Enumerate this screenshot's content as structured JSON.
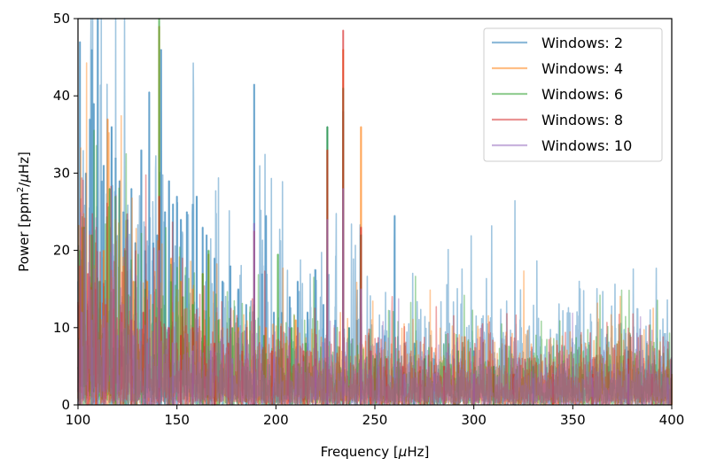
{
  "chart_data": {
    "type": "line",
    "xlabel_prefix": "Frequency [",
    "xlabel_mu": "μ",
    "xlabel_suffix": "Hz]",
    "ylabel_prefix": "Power [ppm",
    "ylabel_sup": "2",
    "ylabel_mid": "/",
    "ylabel_mu": "μ",
    "ylabel_suffix": "Hz]",
    "xlim": [
      100,
      400
    ],
    "ylim": [
      0,
      50
    ],
    "xticks": [
      100,
      150,
      200,
      250,
      300,
      350,
      400
    ],
    "yticks": [
      0,
      10,
      20,
      30,
      40,
      50
    ],
    "grid": false,
    "legend_position": "top-right",
    "series": [
      {
        "name": "Windows: 2",
        "color": "#1f77b4",
        "noise_level": 3.2,
        "scale": 1.25,
        "peaks": [
          [
            101,
            47
          ],
          [
            104,
            30
          ],
          [
            106,
            37
          ],
          [
            107,
            46
          ],
          [
            108,
            39
          ],
          [
            110,
            50
          ],
          [
            112,
            29
          ],
          [
            113,
            31
          ],
          [
            117,
            36
          ],
          [
            119,
            32
          ],
          [
            121,
            29
          ],
          [
            123,
            25
          ],
          [
            125,
            24
          ],
          [
            127,
            28
          ],
          [
            129,
            21
          ],
          [
            132,
            33
          ],
          [
            134,
            20
          ],
          [
            136,
            40.5
          ],
          [
            138,
            21
          ],
          [
            140,
            22
          ],
          [
            142,
            46
          ],
          [
            144,
            25
          ],
          [
            146,
            29
          ],
          [
            148,
            26
          ],
          [
            150,
            27
          ],
          [
            152,
            24
          ],
          [
            155,
            25
          ],
          [
            158,
            26
          ],
          [
            160,
            27
          ],
          [
            163,
            23
          ],
          [
            165,
            22
          ],
          [
            169,
            19
          ],
          [
            173,
            16
          ],
          [
            177,
            18
          ],
          [
            181,
            15
          ],
          [
            185,
            13
          ],
          [
            189,
            41.5
          ],
          [
            193,
            17
          ],
          [
            195,
            24.5
          ],
          [
            199,
            12
          ],
          [
            203,
            12
          ],
          [
            207,
            14
          ],
          [
            211,
            16
          ],
          [
            216,
            12
          ],
          [
            220,
            17.5
          ],
          [
            224,
            13
          ],
          [
            226,
            36
          ],
          [
            230,
            11
          ],
          [
            234,
            38
          ],
          [
            237,
            10
          ],
          [
            241,
            11
          ],
          [
            243,
            22
          ],
          [
            247,
            9
          ],
          [
            251,
            8
          ],
          [
            255,
            9
          ],
          [
            260,
            24.5
          ],
          [
            265,
            8
          ],
          [
            270,
            8
          ],
          [
            275,
            6
          ],
          [
            280,
            6
          ],
          [
            290,
            6
          ],
          [
            300,
            7
          ],
          [
            310,
            5
          ],
          [
            320,
            6
          ],
          [
            330,
            5
          ],
          [
            340,
            5
          ],
          [
            350,
            5
          ],
          [
            360,
            5
          ],
          [
            368,
            5
          ],
          [
            378,
            7
          ],
          [
            385,
            5
          ],
          [
            392,
            4
          ],
          [
            398,
            4
          ]
        ]
      },
      {
        "name": "Windows: 4",
        "color": "#ff7f0e",
        "noise_level": 2.6,
        "scale": 1.0,
        "peaks": [
          [
            102,
            23
          ],
          [
            106,
            22
          ],
          [
            109,
            21
          ],
          [
            113,
            20
          ],
          [
            115,
            37
          ],
          [
            119,
            24
          ],
          [
            123,
            18
          ],
          [
            128,
            16
          ],
          [
            135,
            16
          ],
          [
            141,
            49
          ],
          [
            147,
            19
          ],
          [
            152,
            16
          ],
          [
            158,
            15
          ],
          [
            163,
            17
          ],
          [
            166,
            19.5
          ],
          [
            170,
            12
          ],
          [
            181,
            10
          ],
          [
            189,
            12
          ],
          [
            195,
            10
          ],
          [
            205,
            8
          ],
          [
            210,
            11
          ],
          [
            216,
            7
          ],
          [
            226,
            33
          ],
          [
            234,
            46
          ],
          [
            243,
            36
          ],
          [
            253,
            6
          ],
          [
            262,
            7
          ],
          [
            275,
            5
          ],
          [
            290,
            5
          ],
          [
            310,
            4
          ],
          [
            340,
            4
          ],
          [
            360,
            3.5
          ],
          [
            378,
            4
          ],
          [
            400,
            4
          ]
        ]
      },
      {
        "name": "Windows: 6",
        "color": "#2ca02c",
        "noise_level": 2.4,
        "scale": 1.0,
        "peaks": [
          [
            101,
            20
          ],
          [
            103,
            23
          ],
          [
            107,
            22
          ],
          [
            111,
            16
          ],
          [
            116,
            28
          ],
          [
            119,
            27
          ],
          [
            124,
            20
          ],
          [
            129,
            16
          ],
          [
            134,
            15
          ],
          [
            141,
            50
          ],
          [
            147,
            16
          ],
          [
            153,
            14
          ],
          [
            158,
            13
          ],
          [
            163,
            17
          ],
          [
            166,
            20
          ],
          [
            171,
            11
          ],
          [
            178,
            10
          ],
          [
            189,
            13
          ],
          [
            194,
            9
          ],
          [
            201,
            19.5
          ],
          [
            208,
            10
          ],
          [
            215,
            8
          ],
          [
            226,
            36
          ],
          [
            234,
            41
          ],
          [
            243,
            22
          ],
          [
            250,
            6
          ],
          [
            262,
            6
          ],
          [
            275,
            6
          ],
          [
            292,
            7
          ],
          [
            310,
            5
          ],
          [
            330,
            5
          ],
          [
            355,
            4
          ],
          [
            378,
            4
          ],
          [
            395,
            4
          ]
        ]
      },
      {
        "name": "Windows: 8",
        "color": "#d62728",
        "noise_level": 2.2,
        "scale": 1.0,
        "peaks": [
          [
            101,
            18
          ],
          [
            105,
            17
          ],
          [
            109,
            15
          ],
          [
            114,
            13
          ],
          [
            118,
            15
          ],
          [
            122,
            12
          ],
          [
            127,
            11
          ],
          [
            133,
            12
          ],
          [
            141,
            27
          ],
          [
            146,
            10
          ],
          [
            152,
            9
          ],
          [
            158,
            10
          ],
          [
            164,
            9
          ],
          [
            169,
            8
          ],
          [
            176,
            8
          ],
          [
            183,
            7
          ],
          [
            189,
            22.5
          ],
          [
            198,
            7
          ],
          [
            206,
            6
          ],
          [
            214,
            7
          ],
          [
            220,
            6
          ],
          [
            226,
            33
          ],
          [
            234,
            48.5
          ],
          [
            243,
            23
          ],
          [
            248,
            7
          ],
          [
            256,
            6
          ],
          [
            264,
            5
          ],
          [
            273,
            5
          ],
          [
            285,
            5
          ],
          [
            300,
            4
          ],
          [
            320,
            4
          ],
          [
            340,
            4
          ],
          [
            360,
            4
          ],
          [
            378,
            6
          ],
          [
            390,
            4
          ]
        ]
      },
      {
        "name": "Windows: 10",
        "color": "#9467bd",
        "noise_level": 2.0,
        "scale": 1.0,
        "peaks": [
          [
            102,
            12
          ],
          [
            107,
            11
          ],
          [
            113,
            10
          ],
          [
            120,
            9
          ],
          [
            128,
            9
          ],
          [
            135,
            8
          ],
          [
            141,
            20
          ],
          [
            148,
            8
          ],
          [
            158,
            7
          ],
          [
            167,
            7
          ],
          [
            178,
            6
          ],
          [
            189,
            23.5
          ],
          [
            199,
            6
          ],
          [
            210,
            6
          ],
          [
            220,
            5
          ],
          [
            226,
            24
          ],
          [
            234,
            28
          ],
          [
            243,
            15
          ],
          [
            252,
            5
          ],
          [
            265,
            4
          ],
          [
            280,
            4
          ],
          [
            300,
            4
          ],
          [
            330,
            3.5
          ],
          [
            360,
            3.5
          ],
          [
            378,
            4
          ],
          [
            398,
            3.5
          ]
        ]
      }
    ]
  }
}
